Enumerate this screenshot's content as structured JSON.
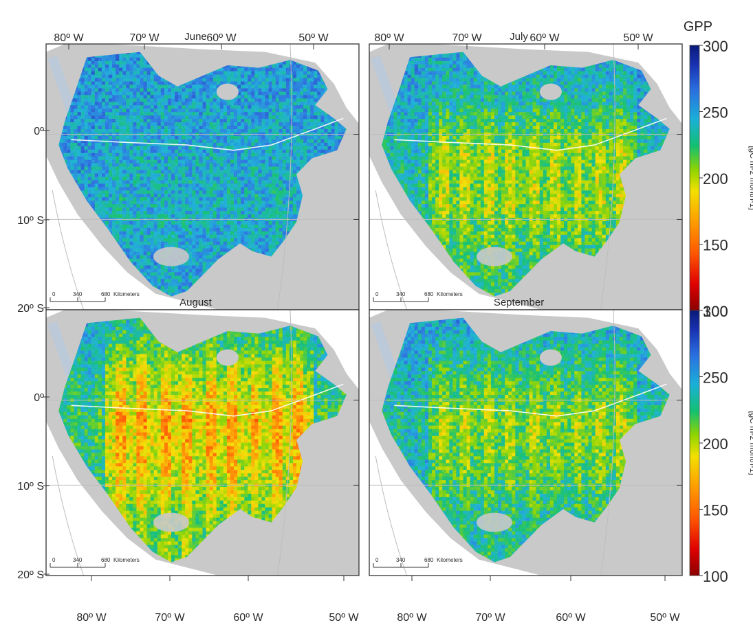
{
  "panels": [
    {
      "title": "June",
      "bands": [
        0.0,
        0.06,
        0.1,
        0.14,
        0.08
      ],
      "map_row": 0,
      "map_col": 0
    },
    {
      "title": "July",
      "bands": [
        0.05,
        0.22,
        0.55,
        0.55,
        0.35
      ],
      "map_row": 0,
      "map_col": 1
    },
    {
      "title": "August",
      "bands": [
        0.15,
        0.55,
        0.85,
        0.75,
        0.5
      ],
      "map_row": 1,
      "map_col": 0
    },
    {
      "title": "September",
      "bands": [
        0.0,
        0.3,
        0.55,
        0.45,
        0.25
      ],
      "map_row": 1,
      "map_col": 1
    }
  ],
  "top_lon_ticks": [
    "80º W",
    "70º W",
    "60º W",
    "50º W"
  ],
  "bottom_lon_ticks": [
    "80º W",
    "70º W",
    "60º W",
    "50º W"
  ],
  "lat_ticks": [
    "0º",
    "10º S",
    "20º S"
  ],
  "scale_bar": {
    "ticks": [
      "0",
      "340",
      "680"
    ],
    "unit": "Kilometers"
  },
  "colorbar": {
    "title": "GPP",
    "ticks": [
      "300",
      "250",
      "200",
      "150",
      "100"
    ],
    "unit_label": "[gC m-2 month-1]",
    "range": [
      100,
      300
    ],
    "colors": [
      "#8b0000",
      "#e00000",
      "#ff5a00",
      "#ff9a00",
      "#f2e000",
      "#8fd400",
      "#13c070",
      "#1ab0d8",
      "#2a70e0",
      "#1830b0",
      "#0a1a78"
    ]
  },
  "colors": {
    "land": "#c9c9c9",
    "background": "#ffffff",
    "frame": "#333333"
  }
}
